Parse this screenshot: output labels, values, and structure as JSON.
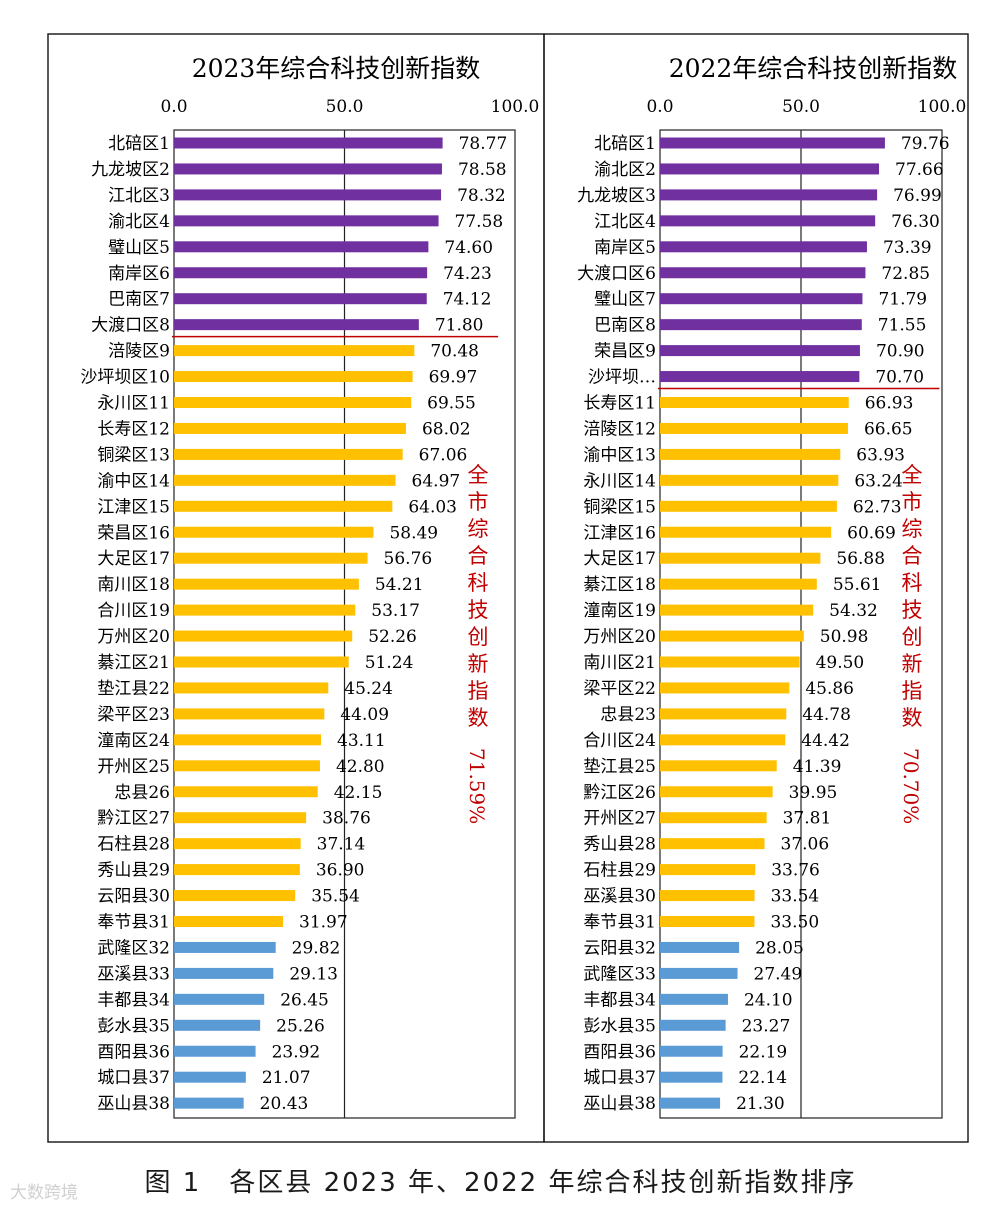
{
  "figure_caption": "图 1　各区县 2023 年、2022 年综合科技创新指数排序",
  "watermark": "大数跨境",
  "colors": {
    "top": "#7030A0",
    "mid": "#FFC000",
    "low": "#5B9BD5",
    "avg_line": "#C00000",
    "annotation": "#C00000"
  },
  "chart_data": [
    {
      "type": "bar",
      "orientation": "horizontal",
      "title": "2023年综合科技创新指数",
      "xlim": [
        0,
        100
      ],
      "ticks": [
        "0.0",
        "50.0",
        "100.0"
      ],
      "reference_line_x": 50,
      "average": {
        "label": "全市综合科技创新指数",
        "value_text": "71.59%",
        "value": 71.59,
        "after_rank": 8
      },
      "categories": [
        "北碚区1",
        "九龙坡区2",
        "江北区3",
        "渝北区4",
        "璧山区5",
        "南岸区6",
        "巴南区7",
        "大渡口区8",
        "涪陵区9",
        "沙坪坝区10",
        "永川区11",
        "长寿区12",
        "铜梁区13",
        "渝中区14",
        "江津区15",
        "荣昌区16",
        "大足区17",
        "南川区18",
        "合川区19",
        "万州区20",
        "綦江区21",
        "垫江县22",
        "梁平区23",
        "潼南区24",
        "开州区25",
        "忠县26",
        "黔江区27",
        "石柱县28",
        "秀山县29",
        "云阳县30",
        "奉节县31",
        "武隆区32",
        "巫溪县33",
        "丰都县34",
        "彭水县35",
        "酉阳县36",
        "城口县37",
        "巫山县38"
      ],
      "values": [
        78.77,
        78.58,
        78.32,
        77.58,
        74.6,
        74.23,
        74.12,
        71.8,
        70.48,
        69.97,
        69.55,
        68.02,
        67.06,
        64.97,
        64.03,
        58.49,
        56.76,
        54.21,
        53.17,
        52.26,
        51.24,
        45.24,
        44.09,
        43.11,
        42.8,
        42.15,
        38.76,
        37.14,
        36.9,
        35.54,
        31.97,
        29.82,
        29.13,
        26.45,
        25.26,
        23.92,
        21.07,
        20.43
      ],
      "labels": [
        "78.77",
        "78.58",
        "78.32",
        "77.58",
        "74.60",
        "74.23",
        "74.12",
        "71.80",
        "70.48",
        "69.97",
        "69.55",
        "68.02",
        "67.06",
        "64.97",
        "64.03",
        "58.49",
        "56.76",
        "54.21",
        "53.17",
        "52.26",
        "51.24",
        "45.24",
        "44.09",
        "43.11",
        "42.80",
        "42.15",
        "38.76",
        "37.14",
        "36.90",
        "35.54",
        "31.97",
        "29.82",
        "29.13",
        "26.45",
        "25.26",
        "23.92",
        "21.07",
        "20.43"
      ],
      "groups": [
        "top",
        "top",
        "top",
        "top",
        "top",
        "top",
        "top",
        "top",
        "mid",
        "mid",
        "mid",
        "mid",
        "mid",
        "mid",
        "mid",
        "mid",
        "mid",
        "mid",
        "mid",
        "mid",
        "mid",
        "mid",
        "mid",
        "mid",
        "mid",
        "mid",
        "mid",
        "mid",
        "mid",
        "mid",
        "mid",
        "low",
        "low",
        "low",
        "low",
        "low",
        "low",
        "low"
      ]
    },
    {
      "type": "bar",
      "orientation": "horizontal",
      "title": "2022年综合科技创新指数",
      "xlim": [
        0,
        100
      ],
      "ticks": [
        "0.0",
        "50.0",
        "100.0"
      ],
      "reference_line_x": 50,
      "average": {
        "label": "全市综合科技创新指数",
        "value_text": "70.70%",
        "value": 70.7,
        "after_rank": 10
      },
      "categories": [
        "北碚区1",
        "渝北区2",
        "九龙坡区3",
        "江北区4",
        "南岸区5",
        "大渡口区6",
        "璧山区7",
        "巴南区8",
        "荣昌区9",
        "沙坪坝…",
        "长寿区11",
        "涪陵区12",
        "渝中区13",
        "永川区14",
        "铜梁区15",
        "江津区16",
        "大足区17",
        "綦江区18",
        "潼南区19",
        "万州区20",
        "南川区21",
        "梁平区22",
        "忠县23",
        "合川区24",
        "垫江县25",
        "黔江区26",
        "开州区27",
        "秀山县28",
        "石柱县29",
        "巫溪县30",
        "奉节县31",
        "云阳县32",
        "武隆区33",
        "丰都县34",
        "彭水县35",
        "酉阳县36",
        "城口县37",
        "巫山县38"
      ],
      "values": [
        79.76,
        77.66,
        76.99,
        76.3,
        73.39,
        72.85,
        71.79,
        71.55,
        70.9,
        70.7,
        66.93,
        66.65,
        63.93,
        63.24,
        62.73,
        60.69,
        56.88,
        55.61,
        54.32,
        50.98,
        49.5,
        45.86,
        44.78,
        44.42,
        41.39,
        39.95,
        37.81,
        37.06,
        33.76,
        33.54,
        33.5,
        28.05,
        27.49,
        24.1,
        23.27,
        22.19,
        22.14,
        21.3
      ],
      "labels": [
        "79.76",
        "77.66",
        "76.99",
        "76.30",
        "73.39",
        "72.85",
        "71.79",
        "71.55",
        "70.90",
        "70.70",
        "66.93",
        "66.65",
        "63.93",
        "63.24",
        "62.73",
        "60.69",
        "56.88",
        "55.61",
        "54.32",
        "50.98",
        "49.50",
        "45.86",
        "44.78",
        "44.42",
        "41.39",
        "39.95",
        "37.81",
        "37.06",
        "33.76",
        "33.54",
        "33.50",
        "28.05",
        "27.49",
        "24.10",
        "23.27",
        "22.19",
        "22.14",
        "21.30"
      ],
      "groups": [
        "top",
        "top",
        "top",
        "top",
        "top",
        "top",
        "top",
        "top",
        "top",
        "top",
        "mid",
        "mid",
        "mid",
        "mid",
        "mid",
        "mid",
        "mid",
        "mid",
        "mid",
        "mid",
        "mid",
        "mid",
        "mid",
        "mid",
        "mid",
        "mid",
        "mid",
        "mid",
        "mid",
        "mid",
        "mid",
        "low",
        "low",
        "low",
        "low",
        "low",
        "low",
        "low"
      ]
    }
  ]
}
